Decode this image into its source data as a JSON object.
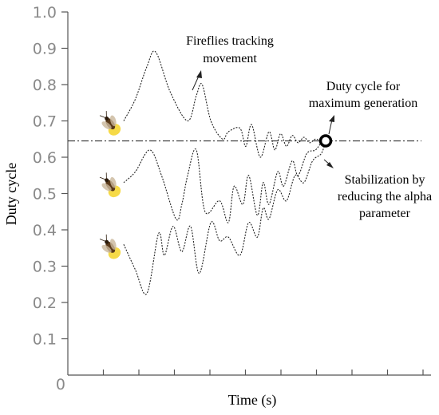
{
  "chart_data": {
    "type": "line",
    "title": "",
    "xlabel": "Time (s)",
    "ylabel": "Duty cycle",
    "ylim": [
      0,
      1.0
    ],
    "y_ticks": [
      "1.0",
      "0.9",
      "0.8",
      "0.7",
      "0.6",
      "0.5",
      "0.4",
      "0.3",
      "0.2",
      "0.1",
      "0"
    ],
    "reference_line": {
      "y": 0.645,
      "label": "Duty cycle for maximum generation"
    },
    "series": [
      {
        "x": [
          0,
          0.4,
          0.8,
          1.1,
          1.6,
          2.2,
          2.5,
          2.7,
          3.0,
          3.4,
          3.6,
          4.0,
          4.2,
          4.4,
          4.7,
          5.0,
          5.2,
          5.4,
          5.6,
          5.8,
          6.0,
          6.2,
          6.4,
          6.6,
          6.8,
          6.95
        ],
        "y": [
          0.7,
          0.76,
          0.85,
          0.89,
          0.78,
          0.7,
          0.77,
          0.8,
          0.7,
          0.65,
          0.67,
          0.68,
          0.63,
          0.69,
          0.6,
          0.67,
          0.62,
          0.665,
          0.63,
          0.66,
          0.64,
          0.655,
          0.64,
          0.65,
          0.645,
          0.645
        ]
      },
      {
        "x": [
          0,
          0.4,
          0.9,
          1.3,
          1.8,
          2.0,
          2.2,
          2.5,
          2.8,
          3.3,
          3.6,
          3.8,
          4.1,
          4.3,
          4.6,
          4.8,
          5.0,
          5.3,
          5.5,
          5.8,
          6.0,
          6.3,
          6.6,
          6.8,
          6.95
        ],
        "y": [
          0.53,
          0.56,
          0.62,
          0.55,
          0.43,
          0.47,
          0.55,
          0.62,
          0.45,
          0.48,
          0.42,
          0.52,
          0.47,
          0.55,
          0.44,
          0.53,
          0.47,
          0.56,
          0.52,
          0.59,
          0.55,
          0.61,
          0.62,
          0.64,
          0.645
        ]
      },
      {
        "x": [
          0,
          0.4,
          0.8,
          1.2,
          1.4,
          1.7,
          2.0,
          2.3,
          2.6,
          3.0,
          3.3,
          3.6,
          4.0,
          4.3,
          4.6,
          4.8,
          5.0,
          5.3,
          5.6,
          5.9,
          6.2,
          6.5,
          6.8,
          6.95
        ],
        "y": [
          0.36,
          0.29,
          0.225,
          0.39,
          0.33,
          0.41,
          0.34,
          0.41,
          0.28,
          0.42,
          0.37,
          0.38,
          0.33,
          0.42,
          0.38,
          0.46,
          0.43,
          0.51,
          0.48,
          0.55,
          0.53,
          0.59,
          0.61,
          0.645
        ]
      }
    ],
    "annotations": [
      {
        "text": "Fireflies tracking",
        "text2": "movement"
      },
      {
        "text": "Duty cycle for",
        "text2": "maximum generation"
      },
      {
        "text": "Stabilization by",
        "text2": "reducing the alpha",
        "text3": "parameter"
      }
    ],
    "grid": false,
    "legend": "none"
  },
  "colors": {
    "firefly_glow": "#f5d327",
    "firefly_body": "#5a3a1a",
    "optimum_marker": "#000000"
  },
  "icons": [
    "firefly-icon",
    "firefly-icon",
    "firefly-icon",
    "optimum-marker-icon"
  ]
}
